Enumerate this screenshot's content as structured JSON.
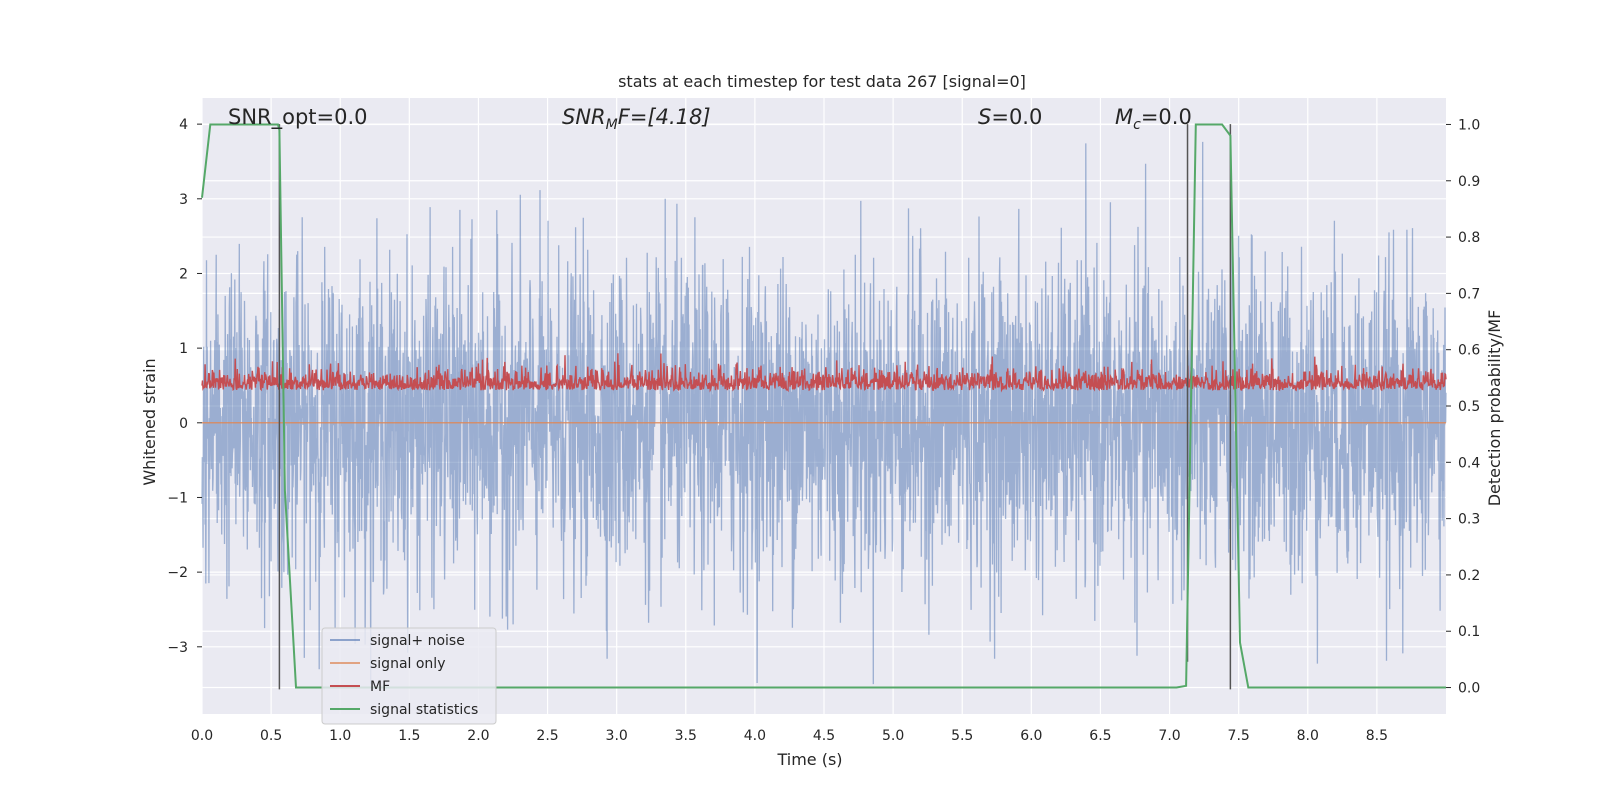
{
  "chart_data": {
    "type": "line",
    "title": "stats at each timestep for test data 267 [signal=0]",
    "xlabel": "Time (s)",
    "ylabel": "Whitened strain",
    "ylabel_right": "Detection probability/MF",
    "xlim": [
      0.0,
      9.0
    ],
    "ylim": [
      -3.9,
      4.35
    ],
    "ylim_right": [
      -0.047,
      1.047
    ],
    "x_ticks": [
      "0.0",
      "0.5",
      "1.0",
      "1.5",
      "2.0",
      "2.5",
      "3.0",
      "3.5",
      "4.0",
      "4.5",
      "5.0",
      "5.5",
      "6.0",
      "6.5",
      "7.0",
      "7.5",
      "8.0",
      "8.5"
    ],
    "y_ticks_left": [
      "4",
      "3",
      "2",
      "1",
      "0",
      "−1",
      "−2",
      "−3"
    ],
    "y_ticks_right": [
      "1.0",
      "0.9",
      "0.8",
      "0.7",
      "0.6",
      "0.5",
      "0.4",
      "0.3",
      "0.2",
      "0.1",
      "0.0"
    ],
    "grid": true,
    "legend_position": "lower-left",
    "colors": {
      "background": "#eaeaf2",
      "grid": "#ffffff",
      "signal_noise": "#4c72b0",
      "signal_only": "#dd8452",
      "mf": "#c44e52",
      "signal_statistics": "#55a868",
      "markers": "#555555"
    },
    "annotations": {
      "snr_opt": {
        "prefix": "SNR_opt=",
        "value": "0.0"
      },
      "snr_mf": {
        "main": "SNR",
        "sub": "M",
        "suffix": "F=[4.18]"
      },
      "s": {
        "main": "S",
        "suffix": "=0.0"
      },
      "mc": {
        "main": "M",
        "sub": "c",
        "suffix": "=0.0"
      }
    },
    "series": [
      {
        "name": "signal+ noise",
        "summary": "whitened noise, approx within [-3.5, 3.9]"
      },
      {
        "name": "signal only",
        "values": [
          0.0
        ]
      },
      {
        "name": "MF",
        "summary": "matched-filter output, approx 0.5 to 0.6 on right axis"
      },
      {
        "name": "signal statistics",
        "x": [
          0.0,
          0.06,
          0.3,
          0.55,
          0.56,
          0.6,
          0.68,
          7.05,
          7.12,
          7.19,
          7.38,
          7.44,
          7.51,
          7.57,
          9.0
        ],
        "y": [
          0.87,
          1.0,
          1.0,
          1.0,
          0.99,
          0.35,
          0.0,
          0.0,
          0.003,
          1.0,
          1.0,
          0.98,
          0.08,
          0.0,
          0.0
        ]
      }
    ],
    "marker_lines": [
      {
        "x": 0.56,
        "y_range": [
          -3.57,
          4.0
        ]
      },
      {
        "x": 7.13,
        "y_range": [
          -3.2,
          4.0
        ]
      },
      {
        "x": 7.44,
        "y_range": [
          -3.57,
          4.0
        ]
      }
    ]
  }
}
